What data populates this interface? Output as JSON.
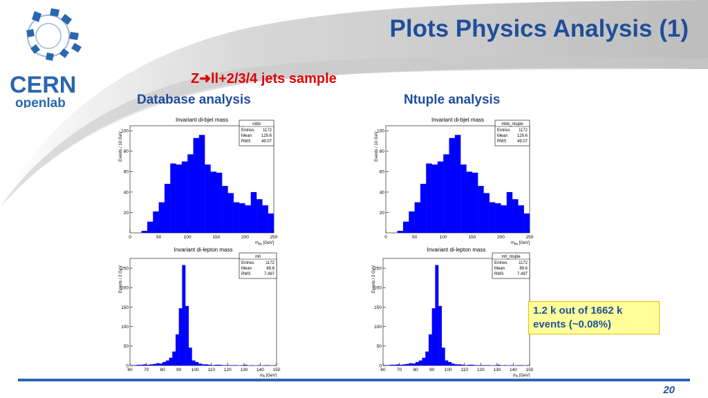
{
  "logo": {
    "line1": "CERN",
    "line2": "openlab"
  },
  "slide": {
    "title": "Plots Physics Analysis (1)",
    "subtitle_z": "Z",
    "subtitle_rest": "ll+2/3/4 jets sample",
    "database_heading": "Database analysis",
    "ntuple_heading": "Ntuple analysis",
    "note": "1.2 k out of 1662 k events (~0.08%)",
    "page_number": "20"
  },
  "colors": {
    "title": "#1f4e9a",
    "subtitle": "#e00000",
    "bars": "#0000ff",
    "note_bg": "#ffff99",
    "rule": "#2a67b0"
  },
  "chart_data": [
    {
      "type": "bar",
      "title": "Invariant di-bjet mass",
      "ylabel": "Events / 10 GeV",
      "xlabel": "m",
      "xlabel_sub": "bb",
      "xlabel_unit": "[GeV]",
      "xlim": [
        0,
        250
      ],
      "ylim": [
        0,
        105
      ],
      "xticks": [
        0,
        50,
        100,
        150,
        200,
        250
      ],
      "yticks": [
        20,
        40,
        60,
        80,
        100
      ],
      "bins_start": 0,
      "bin_width": 10,
      "values": [
        0,
        0,
        2,
        11,
        21,
        30,
        48,
        68,
        67,
        70,
        77,
        93,
        96,
        67,
        60,
        59,
        46,
        39,
        30,
        29,
        27,
        40,
        33,
        27,
        19
      ],
      "stats": {
        "name": "mbb",
        "rows": [
          [
            "Entries",
            "1172"
          ],
          [
            "Mean",
            "129.6"
          ],
          [
            "RMS",
            "49.07"
          ]
        ]
      }
    },
    {
      "type": "bar",
      "title": "Invariant di-bjet mass",
      "ylabel": "Events / 10 GeV",
      "xlabel": "m",
      "xlabel_sub": "bb",
      "xlabel_unit": "[GeV]",
      "xlim": [
        0,
        250
      ],
      "ylim": [
        0,
        105
      ],
      "xticks": [
        0,
        50,
        100,
        150,
        200,
        250
      ],
      "yticks": [
        20,
        40,
        60,
        80,
        100
      ],
      "bins_start": 0,
      "bin_width": 10,
      "values": [
        0,
        0,
        2,
        11,
        21,
        30,
        48,
        68,
        67,
        70,
        77,
        93,
        96,
        67,
        60,
        59,
        46,
        39,
        30,
        29,
        27,
        40,
        33,
        27,
        19
      ],
      "stats": {
        "name": "mbb_ntuple",
        "rows": [
          [
            "Entries",
            "1172"
          ],
          [
            "Mean",
            "129.6"
          ],
          [
            "RMS",
            "49.07"
          ]
        ]
      }
    },
    {
      "type": "bar",
      "title": "Invariant di-lepton mass",
      "ylabel": "Events / 2 GeV",
      "xlabel": "m",
      "xlabel_sub": "ll",
      "xlabel_unit": "[GeV]",
      "xlim": [
        60,
        150
      ],
      "ylim": [
        0,
        275
      ],
      "xticks": [
        60,
        70,
        80,
        90,
        100,
        110,
        120,
        130,
        140,
        150
      ],
      "yticks": [
        0,
        50,
        100,
        150,
        200,
        250
      ],
      "bins_start": 60,
      "bin_width": 2,
      "values": [
        1,
        1,
        2,
        2,
        3,
        2,
        3,
        4,
        6,
        5,
        9,
        13,
        20,
        36,
        80,
        147,
        258,
        153,
        46,
        13,
        9,
        5,
        3,
        3,
        2,
        1,
        2,
        2,
        1,
        1,
        1,
        1,
        1,
        0,
        1,
        2,
        0,
        1,
        0,
        1,
        0,
        1,
        1,
        0,
        1
      ],
      "stats": {
        "name": "mll",
        "rows": [
          [
            "Entries",
            "1172"
          ],
          [
            "Mean",
            "89.6"
          ],
          [
            "RMS",
            "7.497"
          ]
        ]
      }
    },
    {
      "type": "bar",
      "title": "Invariant di-lepton mass",
      "ylabel": "Events / 2 GeV",
      "xlabel": "m",
      "xlabel_sub": "ll",
      "xlabel_unit": "[GeV]",
      "xlim": [
        60,
        150
      ],
      "ylim": [
        0,
        275
      ],
      "xticks": [
        60,
        70,
        80,
        90,
        100,
        110,
        120,
        130,
        140,
        150
      ],
      "yticks": [
        0,
        50,
        100,
        150,
        200,
        250
      ],
      "bins_start": 60,
      "bin_width": 2,
      "values": [
        1,
        1,
        2,
        2,
        3,
        2,
        3,
        4,
        6,
        5,
        9,
        13,
        20,
        36,
        80,
        147,
        258,
        153,
        46,
        13,
        9,
        5,
        3,
        3,
        2,
        1,
        2,
        2,
        1,
        1,
        1,
        1,
        1,
        0,
        1,
        2,
        0,
        1,
        0,
        1,
        0,
        1,
        1,
        0,
        1
      ],
      "stats": {
        "name": "mll_ntuple",
        "rows": [
          [
            "Entries",
            "1172"
          ],
          [
            "Mean",
            "89.6"
          ],
          [
            "RMS",
            "7.497"
          ]
        ]
      }
    }
  ]
}
